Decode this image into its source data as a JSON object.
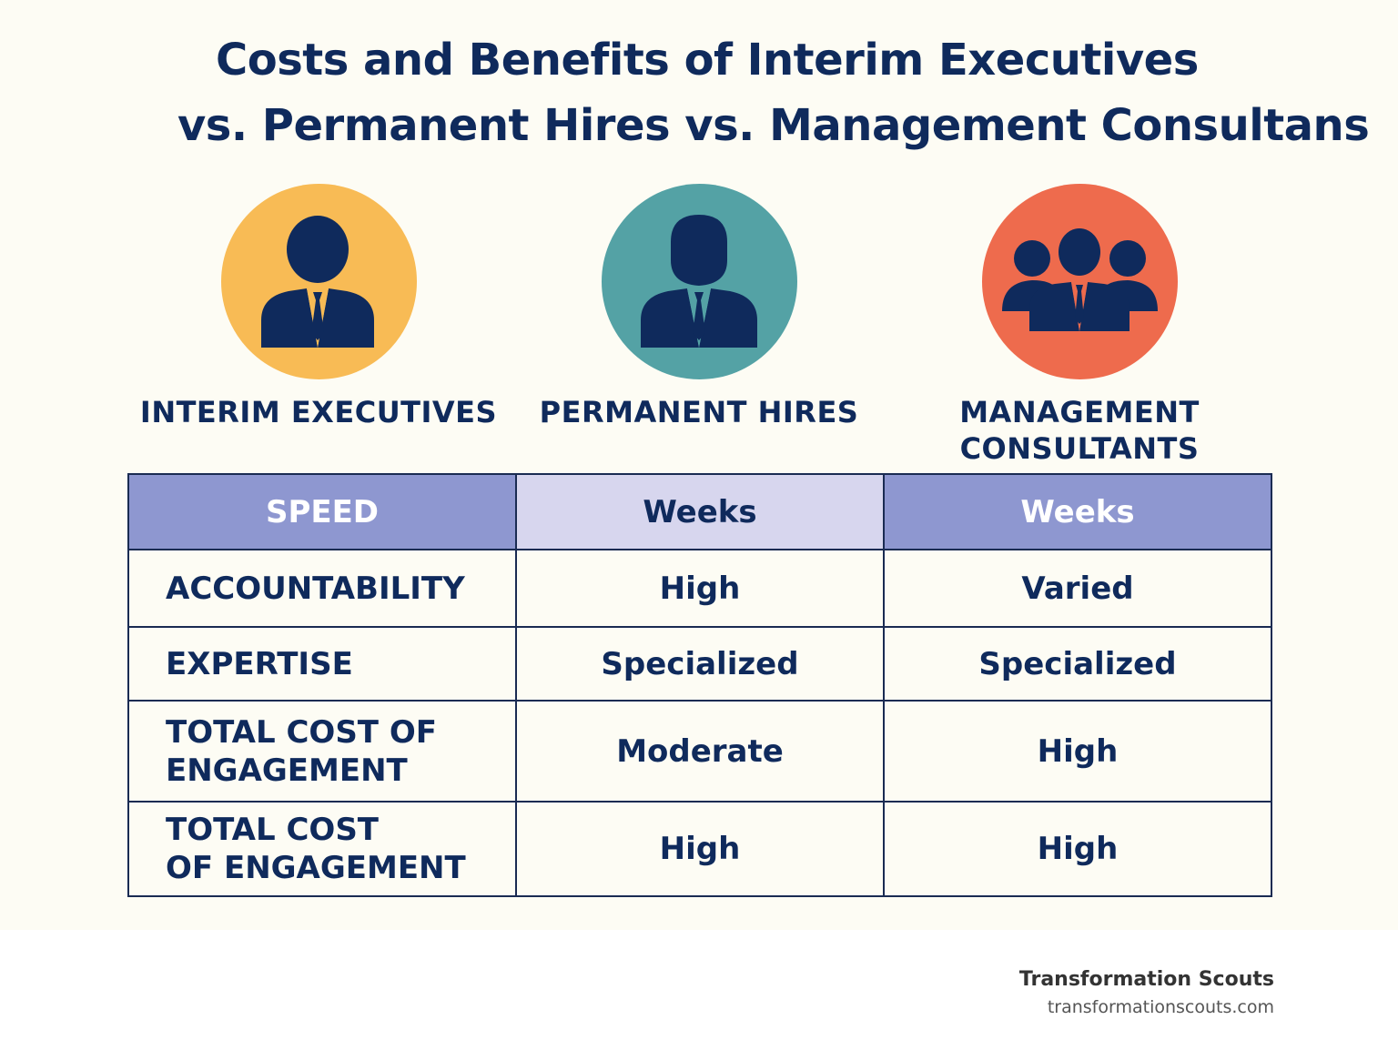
{
  "title": {
    "line1": "Costs and Benefits of Interim Executives",
    "line2": "vs. Permanent Hires vs. Management Consultans"
  },
  "personas": [
    {
      "label": "INTERIM EXECUTIVES",
      "icon": "businessperson-icon",
      "color": "#f8bb55"
    },
    {
      "label": "PERMANENT HIRES",
      "icon": "businessperson-icon",
      "color": "#54a2a5"
    },
    {
      "label_line1": "MANAGEMENT",
      "label_line2": "CONSULTANTS",
      "icon": "team-icon",
      "color": "#ee6b4d"
    }
  ],
  "table": {
    "header": [
      "SPEED",
      "Weeks",
      "Weeks"
    ],
    "rows": [
      {
        "label": "ACCOUNTABILITY",
        "col2": "High",
        "col3": "Varied"
      },
      {
        "label": "EXPERTISE",
        "col2": "Specialized",
        "col3": "Specialized"
      },
      {
        "label_line1": "TOTAL COST OF",
        "label_line2": "ENGAGEMENT",
        "col2": "Moderate",
        "col3": "High"
      },
      {
        "label_line1": "TOTAL COST",
        "label_line2": "OF ENGAGEMENT",
        "col2": "High",
        "col3": "High"
      }
    ]
  },
  "brand": {
    "name": "Transformation Scouts",
    "url": "transformationscouts.com"
  },
  "colors": {
    "navy": "#0f2a5c",
    "header_purple": "#8e97d0",
    "header_lavender": "#d7d6ee",
    "background": "#fdfcf4"
  }
}
